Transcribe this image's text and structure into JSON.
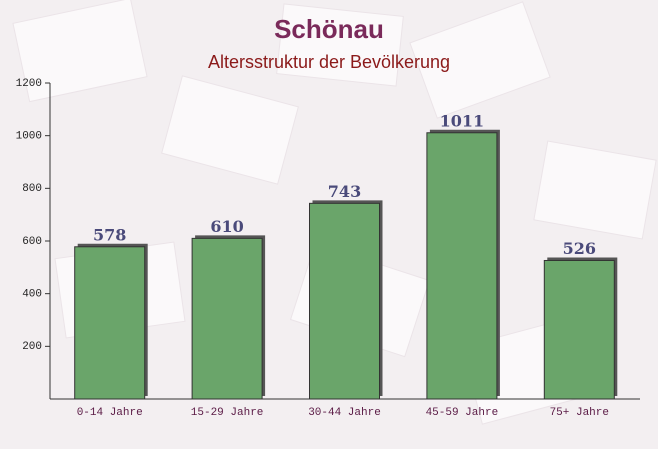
{
  "chart_data": {
    "type": "bar",
    "title": "Schönau",
    "subtitle": "Altersstruktur der Bevölkerung",
    "categories": [
      "0-14 Jahre",
      "15-29 Jahre",
      "30-44 Jahre",
      "45-59 Jahre",
      "75+ Jahre"
    ],
    "values": [
      578,
      610,
      743,
      1011,
      526
    ],
    "color": "#6aa56a",
    "ylim": [
      0,
      1200
    ],
    "yticks": [
      200,
      400,
      600,
      800,
      1000,
      1200
    ],
    "grid": false
  }
}
